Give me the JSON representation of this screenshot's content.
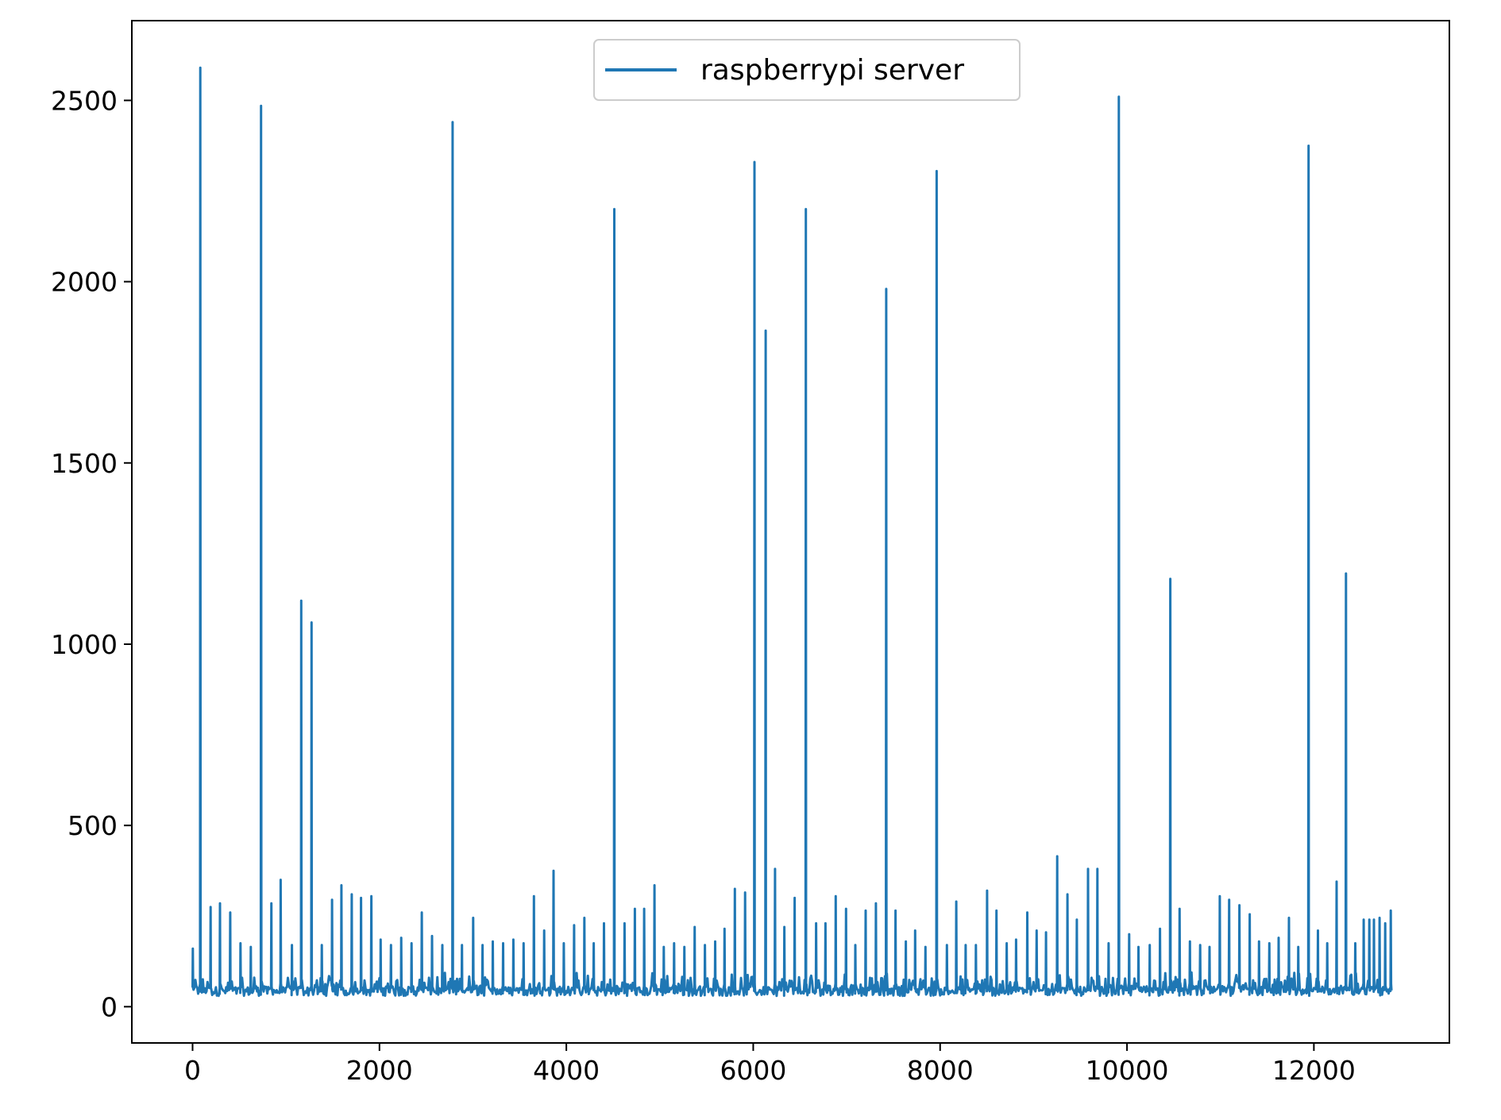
{
  "chart_data": {
    "type": "line",
    "title": "",
    "xlabel": "",
    "ylabel": "",
    "xlim": [
      -650,
      13450
    ],
    "ylim": [
      -100,
      2720
    ],
    "x_ticks": [
      0,
      2000,
      4000,
      6000,
      8000,
      10000,
      12000
    ],
    "y_ticks": [
      0,
      500,
      1000,
      1500,
      2000,
      2500
    ],
    "x_tick_labels": [
      "0",
      "2000",
      "4000",
      "6000",
      "8000",
      "10000",
      "12000"
    ],
    "y_tick_labels": [
      "0",
      "500",
      "1000",
      "1500",
      "2000",
      "2500"
    ],
    "grid": false,
    "legend_position": "top-center",
    "colors": {
      "series": "#1f77b4",
      "axes": "#000000",
      "background": "#ffffff"
    },
    "series": [
      {
        "name": "raspberrypi server",
        "color": "#1f77b4",
        "x_max": 12830,
        "baseline": 45,
        "noise_band": [
          30,
          95
        ],
        "spikes": [
          [
            0,
            160
          ],
          [
            80,
            2590
          ],
          [
            190,
            275
          ],
          [
            290,
            285
          ],
          [
            400,
            260
          ],
          [
            510,
            175
          ],
          [
            620,
            165
          ],
          [
            730,
            2485
          ],
          [
            840,
            285
          ],
          [
            940,
            350
          ],
          [
            1060,
            170
          ],
          [
            1160,
            1120
          ],
          [
            1270,
            1060
          ],
          [
            1380,
            170
          ],
          [
            1490,
            295
          ],
          [
            1590,
            335
          ],
          [
            1700,
            310
          ],
          [
            1800,
            300
          ],
          [
            1910,
            305
          ],
          [
            2010,
            185
          ],
          [
            2120,
            170
          ],
          [
            2230,
            190
          ],
          [
            2340,
            175
          ],
          [
            2450,
            260
          ],
          [
            2560,
            195
          ],
          [
            2670,
            170
          ],
          [
            2780,
            2440
          ],
          [
            2880,
            170
          ],
          [
            3000,
            245
          ],
          [
            3100,
            170
          ],
          [
            3210,
            180
          ],
          [
            3320,
            175
          ],
          [
            3430,
            185
          ],
          [
            3540,
            175
          ],
          [
            3650,
            305
          ],
          [
            3760,
            210
          ],
          [
            3860,
            375
          ],
          [
            3970,
            175
          ],
          [
            4080,
            225
          ],
          [
            4190,
            245
          ],
          [
            4290,
            175
          ],
          [
            4400,
            230
          ],
          [
            4510,
            2200
          ],
          [
            4620,
            230
          ],
          [
            4730,
            270
          ],
          [
            4830,
            270
          ],
          [
            4940,
            335
          ],
          [
            5040,
            165
          ],
          [
            5150,
            175
          ],
          [
            5260,
            165
          ],
          [
            5370,
            220
          ],
          [
            5480,
            170
          ],
          [
            5590,
            180
          ],
          [
            5690,
            215
          ],
          [
            5800,
            325
          ],
          [
            5910,
            315
          ],
          [
            6010,
            2330
          ],
          [
            6130,
            1865
          ],
          [
            6230,
            380
          ],
          [
            6330,
            220
          ],
          [
            6440,
            300
          ],
          [
            6560,
            2200
          ],
          [
            6670,
            230
          ],
          [
            6770,
            230
          ],
          [
            6880,
            305
          ],
          [
            6990,
            270
          ],
          [
            7090,
            170
          ],
          [
            7200,
            265
          ],
          [
            7310,
            285
          ],
          [
            7420,
            1980
          ],
          [
            7520,
            265
          ],
          [
            7630,
            180
          ],
          [
            7730,
            210
          ],
          [
            7840,
            165
          ],
          [
            7960,
            2305
          ],
          [
            8070,
            170
          ],
          [
            8170,
            290
          ],
          [
            8270,
            170
          ],
          [
            8380,
            170
          ],
          [
            8500,
            320
          ],
          [
            8600,
            265
          ],
          [
            8710,
            175
          ],
          [
            8810,
            185
          ],
          [
            8930,
            260
          ],
          [
            9030,
            210
          ],
          [
            9130,
            205
          ],
          [
            9250,
            415
          ],
          [
            9360,
            310
          ],
          [
            9460,
            240
          ],
          [
            9580,
            380
          ],
          [
            9680,
            380
          ],
          [
            9800,
            175
          ],
          [
            9910,
            2510
          ],
          [
            10020,
            200
          ],
          [
            10120,
            165
          ],
          [
            10240,
            170
          ],
          [
            10350,
            215
          ],
          [
            10460,
            1180
          ],
          [
            10560,
            270
          ],
          [
            10670,
            180
          ],
          [
            10780,
            170
          ],
          [
            10880,
            165
          ],
          [
            10990,
            305
          ],
          [
            11090,
            295
          ],
          [
            11200,
            280
          ],
          [
            11310,
            255
          ],
          [
            11410,
            180
          ],
          [
            11520,
            175
          ],
          [
            11620,
            190
          ],
          [
            11730,
            245
          ],
          [
            11830,
            165
          ],
          [
            11940,
            2375
          ],
          [
            12040,
            210
          ],
          [
            12140,
            175
          ],
          [
            12240,
            345
          ],
          [
            12340,
            1195
          ],
          [
            12440,
            175
          ],
          [
            12530,
            240
          ],
          [
            12590,
            240
          ],
          [
            12640,
            240
          ],
          [
            12700,
            245
          ],
          [
            12760,
            230
          ],
          [
            12820,
            265
          ]
        ]
      }
    ]
  }
}
